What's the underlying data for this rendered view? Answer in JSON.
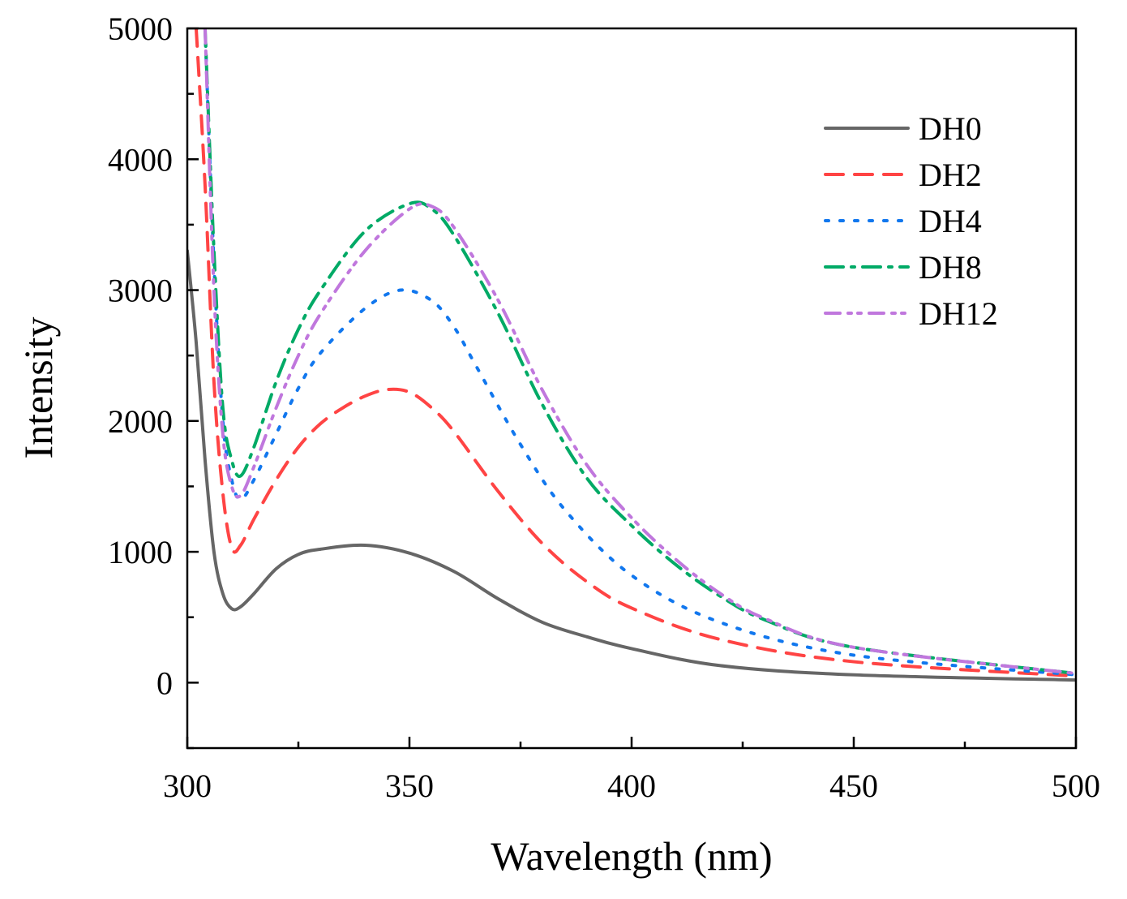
{
  "chart_data": {
    "type": "line",
    "title": "",
    "xlabel": "Wavelength (nm)",
    "ylabel": "Intensity",
    "xlim": [
      300,
      500
    ],
    "ylim": [
      -500,
      5000
    ],
    "xticks": [
      300,
      350,
      400,
      450,
      500
    ],
    "yticks": [
      0,
      1000,
      2000,
      3000,
      4000,
      5000
    ],
    "grid": false,
    "legend_position": "top-right",
    "series": [
      {
        "name": "DH0",
        "color": "#666666",
        "dash": "",
        "x": [
          300,
          302,
          304,
          306,
          308,
          310,
          312,
          315,
          320,
          325,
          330,
          340,
          350,
          360,
          370,
          380,
          390,
          400,
          420,
          450,
          500
        ],
        "y": [
          3300,
          2600,
          1700,
          1000,
          680,
          565,
          580,
          680,
          870,
          980,
          1020,
          1050,
          990,
          850,
          640,
          460,
          350,
          260,
          130,
          60,
          20
        ]
      },
      {
        "name": "DH2",
        "color": "#ff4444",
        "dash": "22,14",
        "x": [
          302,
          304,
          306,
          308,
          310,
          312,
          315,
          320,
          325,
          330,
          335,
          340,
          345,
          350,
          355,
          360,
          370,
          380,
          390,
          400,
          420,
          450,
          500
        ],
        "y": [
          5000,
          3800,
          2300,
          1450,
          1030,
          1050,
          1250,
          1550,
          1800,
          1980,
          2100,
          2190,
          2240,
          2220,
          2100,
          1920,
          1460,
          1060,
          770,
          570,
          330,
          160,
          50
        ]
      },
      {
        "name": "DH4",
        "color": "#1177ee",
        "dash": "4,14",
        "x": [
          304,
          306,
          308,
          310,
          312,
          315,
          320,
          325,
          330,
          340,
          348,
          355,
          360,
          365,
          375,
          385,
          400,
          420,
          450,
          500
        ],
        "y": [
          5000,
          3200,
          2000,
          1550,
          1400,
          1550,
          1900,
          2250,
          2520,
          2860,
          3000,
          2920,
          2720,
          2420,
          1820,
          1320,
          820,
          460,
          210,
          60
        ]
      },
      {
        "name": "DH8",
        "color": "#00aa66",
        "dash": "22,10,4,10",
        "x": [
          304,
          306,
          308,
          310,
          312,
          315,
          320,
          325,
          330,
          340,
          350,
          355,
          360,
          370,
          380,
          390,
          400,
          410,
          420,
          430,
          450,
          500
        ],
        "y": [
          5000,
          3300,
          2100,
          1700,
          1580,
          1800,
          2300,
          2700,
          3000,
          3450,
          3660,
          3620,
          3420,
          2820,
          2120,
          1560,
          1200,
          900,
          660,
          480,
          270,
          70
        ]
      },
      {
        "name": "DH12",
        "color": "#c077dd",
        "dash": "18,10,4,8,4,10",
        "x": [
          304,
          306,
          308,
          310,
          312,
          315,
          320,
          325,
          330,
          340,
          350,
          355,
          360,
          370,
          380,
          390,
          400,
          410,
          420,
          430,
          450,
          500
        ],
        "y": [
          5000,
          3000,
          1900,
          1500,
          1430,
          1650,
          2100,
          2500,
          2820,
          3300,
          3620,
          3640,
          3480,
          2920,
          2230,
          1660,
          1260,
          940,
          680,
          490,
          270,
          70
        ]
      }
    ]
  }
}
